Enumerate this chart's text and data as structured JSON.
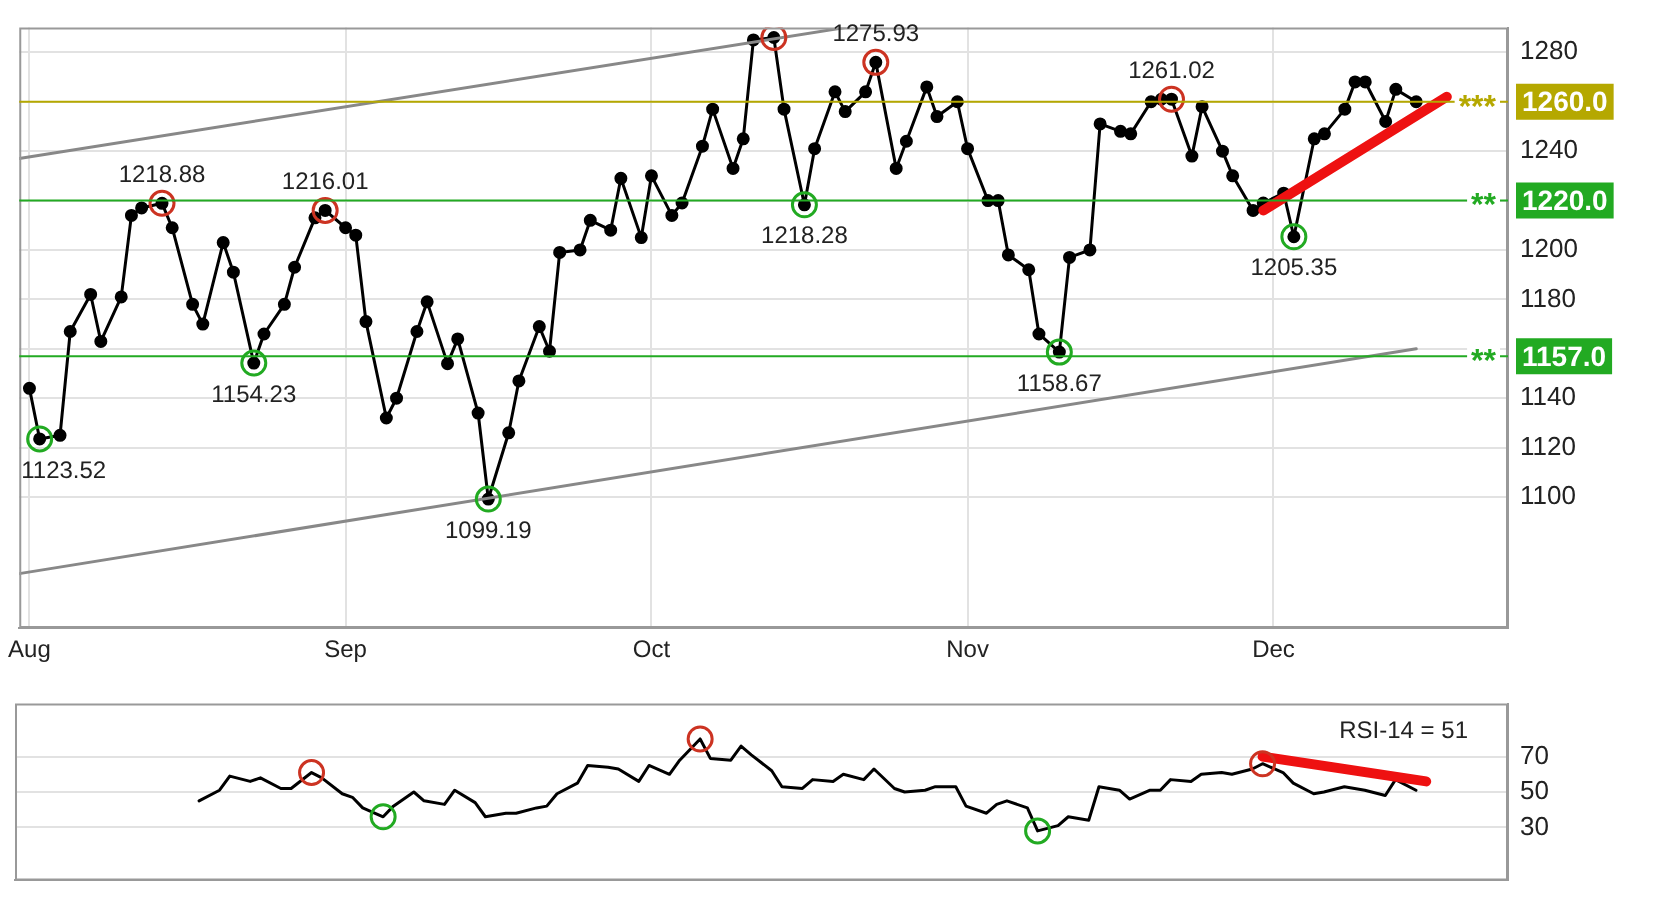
{
  "chart_data": [
    {
      "type": "line",
      "xlim": [
        "--07-31",
        "--12-24"
      ],
      "xticks": [
        {
          "value": "--08-01",
          "label": "Aug"
        },
        {
          "value": "--09-01",
          "label": "Sep"
        },
        {
          "value": "--10-01",
          "label": "Oct"
        },
        {
          "value": "--11-01",
          "label": "Nov"
        },
        {
          "value": "--12-01",
          "label": "Dec"
        }
      ],
      "ylim": [
        1047,
        1290
      ],
      "yticks": [
        1100,
        1120,
        1140,
        {
          "value": 1160,
          "label": null
        },
        1180,
        1200,
        {
          "value": 1220,
          "label": null
        },
        1240,
        {
          "value": 1260,
          "label": null
        },
        1280
      ],
      "grid": true,
      "legend": false,
      "series": [
        {
          "color": "#000000",
          "marker": "circle",
          "x": [
            "--08-01",
            "--08-02",
            "--08-04",
            "--08-05",
            "--08-07",
            "--08-08",
            "--08-10",
            "--08-11",
            "--08-12",
            "--08-14",
            "--08-15",
            "--08-17",
            "--08-18",
            "--08-20",
            "--08-21",
            "--08-23",
            "--08-24",
            "--08-26",
            "--08-27",
            "--08-29",
            "--08-30",
            "--09-01",
            "--09-02",
            "--09-03",
            "--09-05",
            "--09-06",
            "--09-08",
            "--09-09",
            "--09-11",
            "--09-12",
            "--09-14",
            "--09-15",
            "--09-17",
            "--09-18",
            "--09-20",
            "--09-21",
            "--09-22",
            "--09-24",
            "--09-25",
            "--09-27",
            "--09-28",
            "--09-30",
            "--10-01",
            "--10-03",
            "--10-04",
            "--10-06",
            "--10-07",
            "--10-09",
            "--10-10",
            "--10-11",
            "--10-13",
            "--10-14",
            "--10-16",
            "--10-17",
            "--10-19",
            "--10-20",
            "--10-22",
            "--10-23",
            "--10-25",
            "--10-26",
            "--10-28",
            "--10-29",
            "--10-31",
            "--11-01",
            "--11-03",
            "--11-04",
            "--11-05",
            "--11-07",
            "--11-08",
            "--11-10",
            "--11-11",
            "--11-13",
            "--11-14",
            "--11-16",
            "--11-17",
            "--11-19",
            "--11-20",
            "--11-21",
            "--11-23",
            "--11-24",
            "--11-26",
            "--11-27",
            "--11-29",
            "--11-30",
            "--12-02",
            "--12-03",
            "--12-05",
            "--12-06",
            "--12-08",
            "--12-09",
            "--12-10",
            "--12-12",
            "--12-13",
            "--12-15"
          ],
          "values": [
            1144,
            1123.52,
            1125,
            1167,
            1182,
            1163,
            1181,
            1214,
            1217,
            1218.88,
            1209,
            1178,
            1170,
            1203,
            1191,
            1154.23,
            1166,
            1178,
            1193,
            1213,
            1216.01,
            1209,
            1206,
            1171,
            1132,
            1140,
            1167,
            1179,
            1154,
            1164,
            1134,
            1099.19,
            1126,
            1147,
            1169,
            1159,
            1199,
            1200,
            1212,
            1208,
            1229,
            1205,
            1230,
            1214,
            1219,
            1242,
            1257,
            1233,
            1245,
            1285,
            1286,
            1257,
            1218.28,
            1241,
            1264,
            1256,
            1264,
            1275.93,
            1233,
            1244,
            1266,
            1254,
            1260,
            1241,
            1220,
            1220,
            1198,
            1192,
            1166,
            1158.67,
            1197,
            1200,
            1251,
            1248,
            1247,
            1260,
            1261,
            1261.02,
            1238,
            1258,
            1240,
            1230,
            1216,
            1219,
            1223,
            1205.35,
            1245,
            1247,
            1257,
            1268,
            1268,
            1252,
            1265,
            1260
          ]
        },
        {
          "type": "scatter",
          "color": "#cc3322",
          "marker": "circle",
          "x": [
            "--08-14",
            "--08-30",
            "--10-13",
            "--10-23",
            "--11-21"
          ],
          "values": [
            1218.88,
            1216.01,
            1286,
            1275.93,
            1261.02
          ]
        },
        {
          "type": "scatter",
          "color": "#22aa22",
          "marker": "circle",
          "x": [
            "--08-02",
            "--08-23",
            "--09-15",
            "--10-16",
            "--11-10",
            "--12-03"
          ],
          "values": [
            1123.52,
            1154.23,
            1099.19,
            1218.28,
            1158.67,
            1205.35
          ]
        },
        {
          "type": "line",
          "color": "#888888",
          "marker": "none",
          "x": [
            "--07-31",
            "--10-20"
          ],
          "values": [
            1237,
            1290
          ]
        },
        {
          "type": "line",
          "color": "#888888",
          "marker": "none",
          "x": [
            "--07-31",
            "--12-15"
          ],
          "values": [
            1069,
            1160
          ]
        },
        {
          "type": "line",
          "color": "#ee1111",
          "marker": "none",
          "x": [
            "--11-30",
            "--12-18"
          ],
          "values": [
            1216,
            1262
          ]
        }
      ],
      "ref_lines": [
        {
          "axis": "y",
          "value": 1260,
          "label": "*** 1260.0",
          "color": "#b5a800"
        },
        {
          "axis": "y",
          "value": 1220,
          "label": "** 1220.0",
          "color": "#22aa22"
        },
        {
          "axis": "y",
          "value": 1157,
          "label": "** 1157.0",
          "color": "#22aa22"
        }
      ],
      "annotations": [
        {
          "text": "1123.52",
          "x": "--08-02",
          "y": 1123.52
        },
        {
          "text": "1218.88",
          "x": "--08-14",
          "y": 1218.88
        },
        {
          "text": "1154.23",
          "x": "--08-23",
          "y": 1154.23
        },
        {
          "text": "1216.01",
          "x": "--08-30",
          "y": 1216.01
        },
        {
          "text": "1099.19",
          "x": "--09-15",
          "y": 1099.19
        },
        {
          "text": "1218.28",
          "x": "--10-16",
          "y": 1218.28
        },
        {
          "text": "1275.93",
          "x": "--10-23",
          "y": 1275.93
        },
        {
          "text": "1158.67",
          "x": "--11-10",
          "y": 1158.67
        },
        {
          "text": "1261.02",
          "x": "--11-21",
          "y": 1261.02
        },
        {
          "text": "1205.35",
          "x": "--12-03",
          "y": 1205.35
        }
      ]
    },
    {
      "type": "line",
      "xlim": [
        "--07-31",
        "--12-24"
      ],
      "xticks": [
        {
          "value": "--08-01",
          "label": "Aug"
        },
        {
          "value": "--09-01",
          "label": "Sep"
        },
        {
          "value": "--10-01",
          "label": "Oct"
        },
        {
          "value": "--11-01",
          "label": "Nov"
        },
        {
          "value": "--12-01",
          "label": "Dec"
        }
      ],
      "tick_labels": "y",
      "ylim": [
        0,
        100
      ],
      "yticks": [
        30,
        50,
        70
      ],
      "grid": "y",
      "legend": false,
      "series": [
        {
          "color": "#000000",
          "marker": "none",
          "x": [
            "--08-18",
            "--08-20",
            "--08-21",
            "--08-23",
            "--08-24",
            "--08-26",
            "--08-27",
            "--08-29",
            "--08-30",
            "--09-01",
            "--09-02",
            "--09-03",
            "--09-05",
            "--09-06",
            "--09-08",
            "--09-09",
            "--09-11",
            "--09-12",
            "--09-14",
            "--09-15",
            "--09-17",
            "--09-18",
            "--09-20",
            "--09-21",
            "--09-22",
            "--09-24",
            "--09-25",
            "--09-27",
            "--09-28",
            "--09-30",
            "--10-01",
            "--10-03",
            "--10-04",
            "--10-06",
            "--10-07",
            "--10-09",
            "--10-10",
            "--10-11",
            "--10-13",
            "--10-14",
            "--10-16",
            "--10-17",
            "--10-19",
            "--10-20",
            "--10-22",
            "--10-23",
            "--10-25",
            "--10-26",
            "--10-28",
            "--10-29",
            "--10-31",
            "--11-01",
            "--11-03",
            "--11-04",
            "--11-05",
            "--11-07",
            "--11-08",
            "--11-10",
            "--11-11",
            "--11-13",
            "--11-14",
            "--11-16",
            "--11-17",
            "--11-19",
            "--11-20",
            "--11-21",
            "--11-23",
            "--11-24",
            "--11-26",
            "--11-27",
            "--11-29",
            "--11-30",
            "--12-02",
            "--12-03",
            "--12-05",
            "--12-06",
            "--12-08",
            "--12-09",
            "--12-10",
            "--12-12",
            "--12-13",
            "--12-15"
          ],
          "values": [
            45,
            51,
            59,
            56,
            58,
            52,
            52,
            61,
            58,
            49,
            47,
            41,
            36,
            42,
            50,
            45,
            43,
            51,
            44,
            36,
            38,
            38,
            41,
            42,
            49,
            55,
            65,
            64,
            63,
            56,
            65,
            60,
            68,
            80,
            69,
            68,
            76,
            71,
            62,
            53,
            52,
            57,
            56,
            60,
            57,
            63,
            52,
            50,
            51,
            53,
            53,
            42,
            38,
            43,
            45,
            41,
            28,
            31,
            36,
            34,
            53,
            51,
            46,
            51,
            51,
            57,
            56,
            60,
            61,
            60,
            63,
            66,
            61,
            55,
            49,
            50,
            53,
            52,
            51,
            48,
            57,
            51
          ]
        },
        {
          "type": "scatter",
          "color": "#cc3322",
          "marker": "circle",
          "x": [
            "--08-29",
            "--10-06",
            "--11-30"
          ],
          "values": [
            61,
            80,
            66
          ]
        },
        {
          "type": "scatter",
          "color": "#22aa22",
          "marker": "circle",
          "x": [
            "--09-05",
            "--11-08"
          ],
          "values": [
            36,
            28
          ]
        },
        {
          "type": "line",
          "color": "#ee1111",
          "marker": "none",
          "x": [
            "--11-30",
            "--12-16"
          ],
          "values": [
            70,
            56
          ]
        }
      ],
      "annotations": [
        "RSI-14 = 51"
      ]
    }
  ]
}
